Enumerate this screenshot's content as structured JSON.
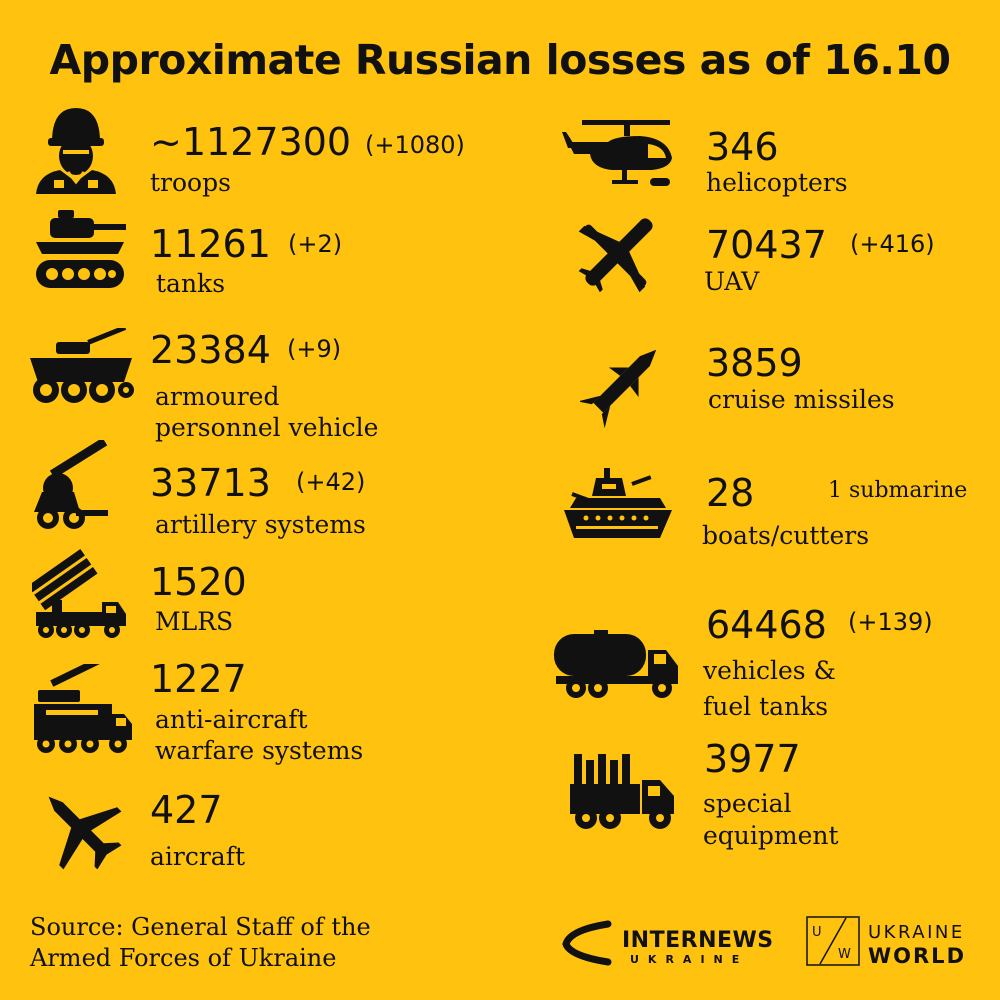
{
  "title": "Approximate Russian losses as of 16.10",
  "items": [
    {
      "icon": "soldier-icon",
      "value": "~1127300",
      "delta": "(+1080)",
      "label": [
        "troops"
      ]
    },
    {
      "icon": "tank-icon",
      "value": "11261",
      "delta": "(+2)",
      "label": [
        "tanks"
      ]
    },
    {
      "icon": "apc-icon",
      "value": "23384",
      "delta": "(+9)",
      "label": [
        "armoured",
        "personnel vehicle"
      ]
    },
    {
      "icon": "artillery-icon",
      "value": "33713",
      "delta": "(+42)",
      "label": [
        "artillery systems"
      ]
    },
    {
      "icon": "mlrs-icon",
      "value": "1520",
      "delta": "",
      "label": [
        "MLRS"
      ]
    },
    {
      "icon": "anti-aircraft-icon",
      "value": "1227",
      "delta": "",
      "label": [
        "anti-aircraft",
        "warfare systems"
      ]
    },
    {
      "icon": "aircraft-icon",
      "value": "427",
      "delta": "",
      "label": [
        "aircraft"
      ]
    },
    {
      "icon": "helicopter-icon",
      "value": "346",
      "delta": "",
      "label": [
        "helicopters"
      ]
    },
    {
      "icon": "uav-icon",
      "value": "70437",
      "delta": "(+416)",
      "label": [
        "UAV"
      ]
    },
    {
      "icon": "cruise-missile-icon",
      "value": "3859",
      "delta": "",
      "label": [
        "cruise missiles"
      ]
    },
    {
      "icon": "ship-icon",
      "value": "28",
      "delta": "",
      "extra": "1 submarine",
      "label": [
        "boats/cutters"
      ]
    },
    {
      "icon": "fuel-truck-icon",
      "value": "64468",
      "delta": "(+139)",
      "label": [
        "vehicles &",
        "fuel tanks"
      ]
    },
    {
      "icon": "special-truck-icon",
      "value": "3977",
      "delta": "",
      "label": [
        "special",
        "equipment"
      ]
    }
  ],
  "source": [
    "Source: General Staff of the",
    "Armed Forces of Ukraine"
  ],
  "logos": {
    "internews": {
      "name": "INTERNEWS",
      "sub": "UKRAINE"
    },
    "ukraine_world": {
      "line1": "UKRAINE",
      "line2": "WORLD",
      "mark_left": "U",
      "mark_right": "W"
    }
  },
  "colors": {
    "background": "#FFC20E",
    "ink": "#111111"
  }
}
